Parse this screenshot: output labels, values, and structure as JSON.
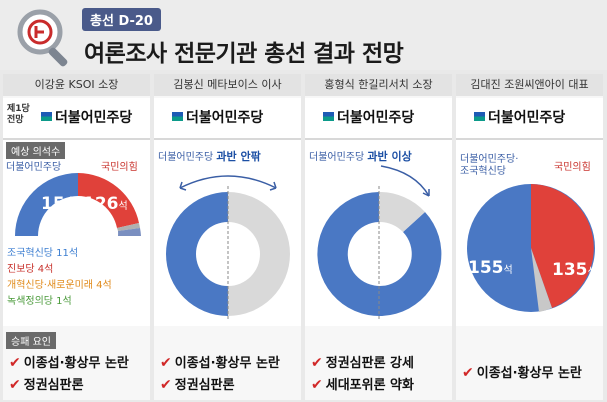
{
  "header": {
    "badge": "총선 D-20",
    "title": "여론조사 전문기관 총선 결과 전망"
  },
  "common": {
    "first_party_label_line1": "제1당",
    "first_party_label_line2": "전망",
    "first_party": "더불어민주당",
    "seats_label": "예상 의석수",
    "win_label": "승패 요인",
    "blue_party_short": "더불어민주당",
    "red_party": "국민의힘"
  },
  "columns": [
    {
      "expert": "이강윤 KSOI 소장",
      "blue_seats": "154",
      "red_seats": "126",
      "seat_unit": "석",
      "small_parties": [
        {
          "text": "조국혁신당 11석",
          "color": "#3b7dd0"
        },
        {
          "text": "진보당 4석",
          "color": "#c8322c"
        },
        {
          "text": "개혁신당·새로운미래 4석",
          "color": "#e08a1a"
        },
        {
          "text": "녹색정의당 1석",
          "color": "#4a9a3a"
        }
      ],
      "reasons": [
        "이종섭·황상무 논란",
        "정권심판론"
      ]
    },
    {
      "expert": "김봉신 메타보이스 이사",
      "verdict": "과반 안팎",
      "reasons": [
        "이종섭·황상무 논란",
        "정권심판론"
      ]
    },
    {
      "expert": "홍형식 한길리서치 소장",
      "verdict": "과반 이상",
      "reasons": [
        "정권심판론 강세",
        "세대포위론 약화"
      ]
    },
    {
      "expert": "김대진 조원씨앤아이 대표",
      "blue_label_line1": "더불어민주당·",
      "blue_label_line2": "조국혁신당",
      "blue_seats": "155",
      "red_seats": "135",
      "seat_unit": "석",
      "reasons": [
        "이종섭·황상무 논란"
      ]
    }
  ]
}
